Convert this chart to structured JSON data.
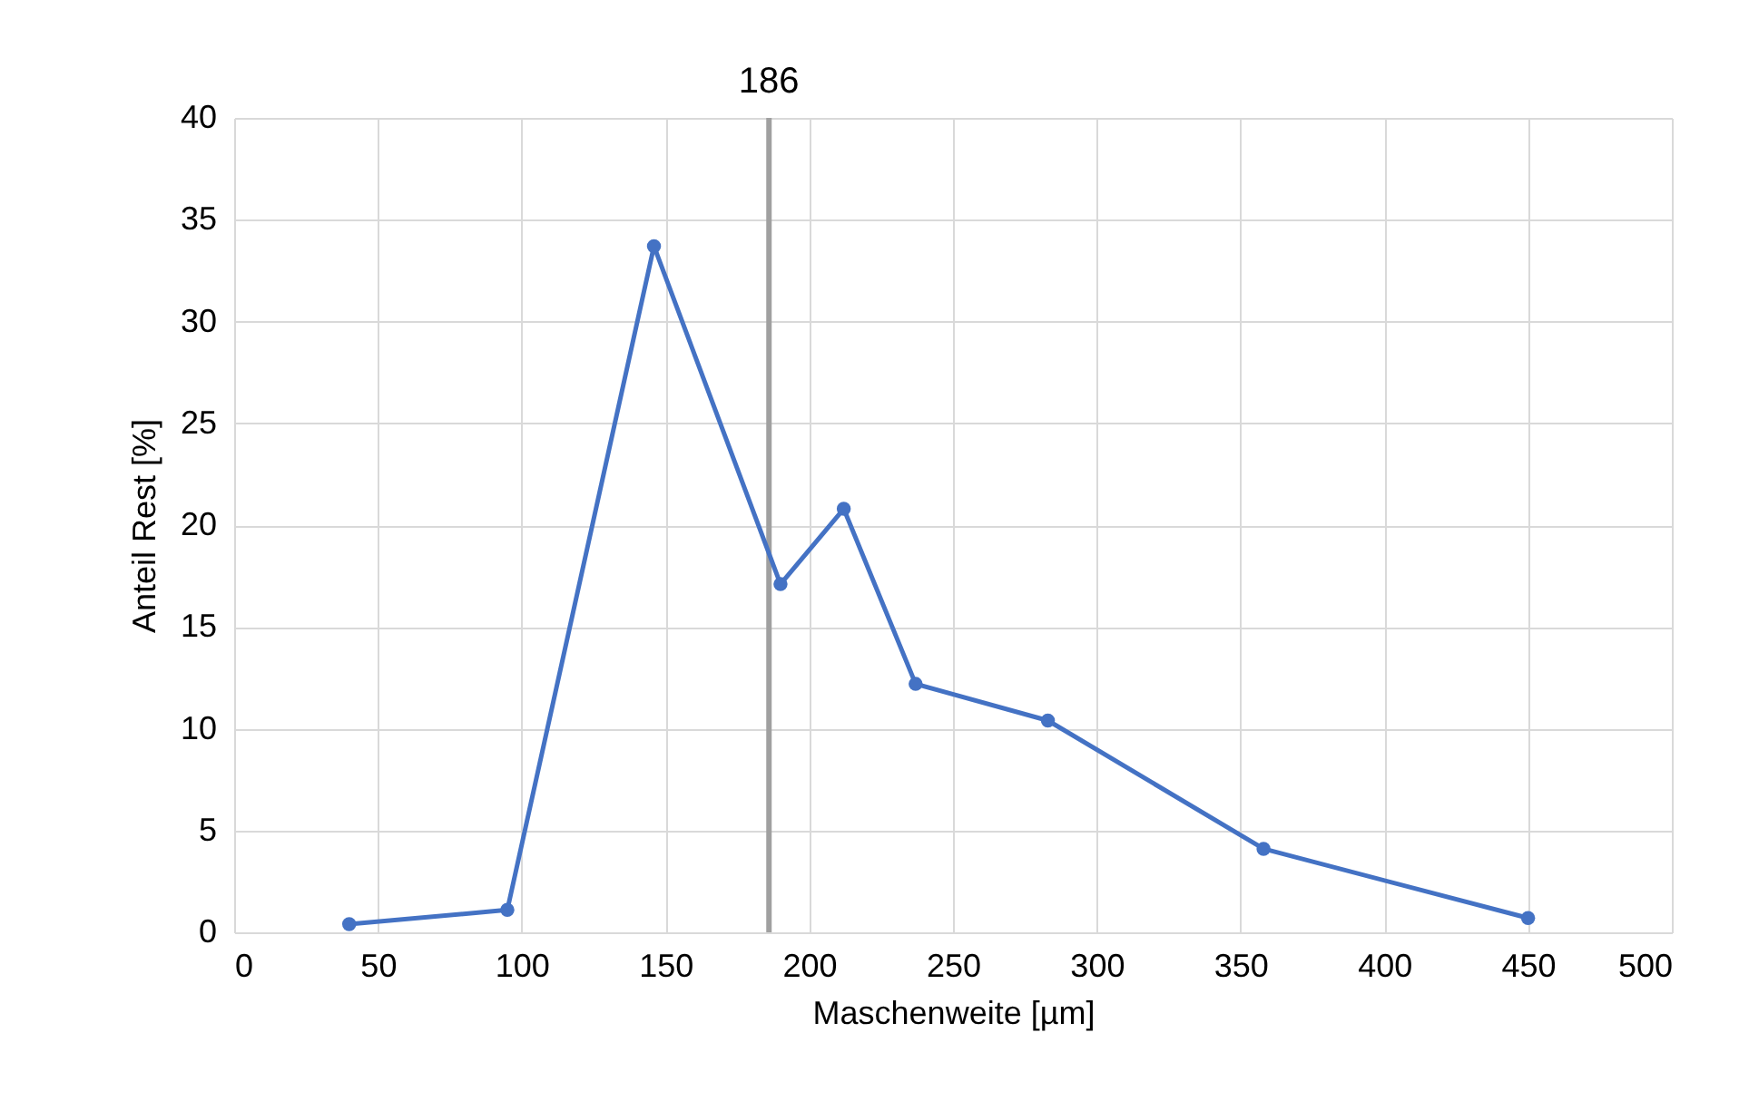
{
  "chart_data": {
    "type": "line",
    "xlabel": "Maschenweite [µm]",
    "ylabel": "Anteil Rest [%]",
    "x": [
      40,
      95,
      146,
      190,
      212,
      237,
      283,
      358,
      450
    ],
    "series": [
      {
        "color": "#4472c4",
        "values": [
          0.4,
          1.1,
          33.7,
          17.1,
          20.8,
          12.2,
          10.4,
          4.1,
          0.7
        ]
      }
    ],
    "xlim": [
      0,
      500
    ],
    "xticks": [
      0,
      50,
      100,
      150,
      200,
      250,
      300,
      350,
      400,
      450,
      500
    ],
    "ylim": [
      0,
      40
    ],
    "yticks": [
      0,
      5,
      10,
      15,
      20,
      25,
      30,
      35,
      40
    ],
    "ref_lines": [
      {
        "axis": "x",
        "value": 186,
        "label": "186",
        "color": "#a0a0a0"
      }
    ],
    "grid": true,
    "marker": "circle",
    "line_style": "solid"
  }
}
